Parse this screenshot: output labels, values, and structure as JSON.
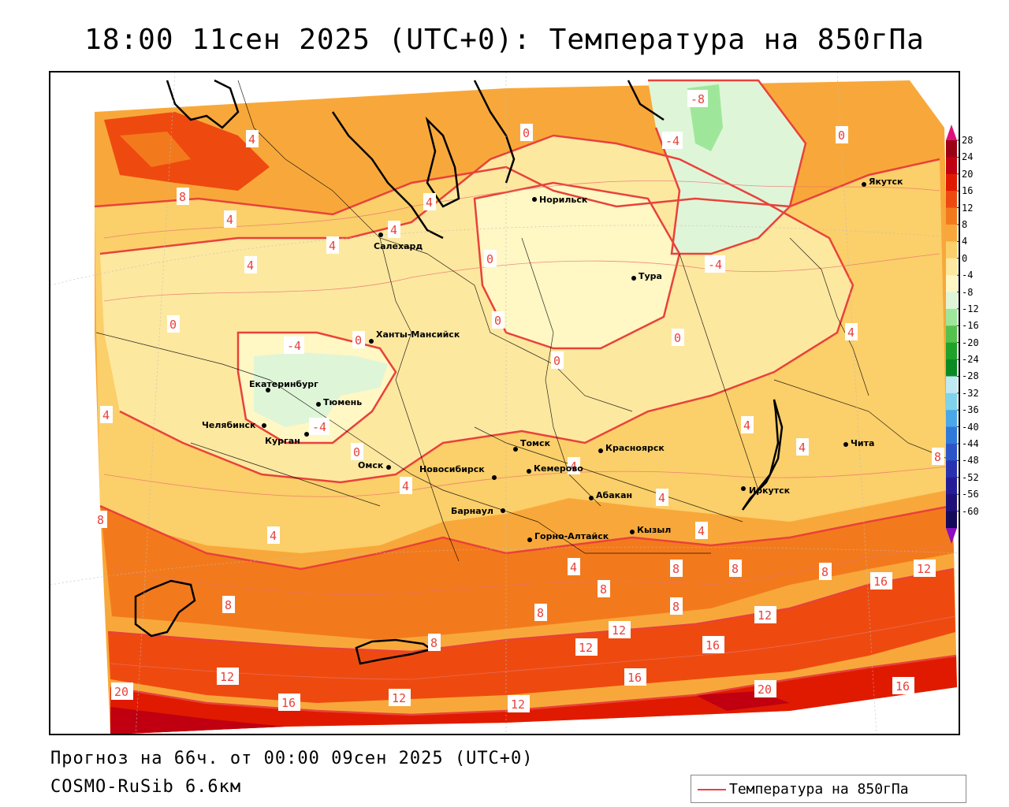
{
  "title": "18:00 11сен 2025 (UTC+0): Температура на 850гПа",
  "forecast_line": "Прогноз на 66ч. от 00:00 09сен 2025 (UTC+0)",
  "model_line": "COSMO-RuSib 6.6км",
  "legend_label": "Температура на 850гПа",
  "colorbar": {
    "labels": [
      "28",
      "24",
      "20",
      "16",
      "12",
      "8",
      "4",
      "0",
      "-4",
      "-8",
      "-12",
      "-16",
      "-20",
      "-24",
      "-28",
      "-32",
      "-36",
      "-40",
      "-44",
      "-48",
      "-52",
      "-56",
      "-60"
    ],
    "colors": [
      "#9a0014",
      "#c00010",
      "#e01a00",
      "#ee4a10",
      "#f37a1c",
      "#f8a83a",
      "#fbcf6a",
      "#fde8a0",
      "#fff7c4",
      "#dff5d8",
      "#9ee79a",
      "#56c24e",
      "#1fa22a",
      "#0a8a22",
      "#bfeaf3",
      "#7fd3ec",
      "#4aa7e8",
      "#2f79da",
      "#2a55c8",
      "#2832b0",
      "#241c96",
      "#1e1078",
      "#140a5a"
    ],
    "top_arrow_color": "#e0107a",
    "bottom_arrow_color": "#8a10c0"
  },
  "cities": [
    {
      "name": "Норильск"
    },
    {
      "name": "Якутск"
    },
    {
      "name": "Салехард"
    },
    {
      "name": "Тура"
    },
    {
      "name": "Ханты-Мансийск"
    },
    {
      "name": "Екатеринбург"
    },
    {
      "name": "Тюмень"
    },
    {
      "name": "Челябинск"
    },
    {
      "name": "Курган"
    },
    {
      "name": "Омск"
    },
    {
      "name": "Томск"
    },
    {
      "name": "Красноярск"
    },
    {
      "name": "Новосибирск"
    },
    {
      "name": "Кемерово"
    },
    {
      "name": "Абакан"
    },
    {
      "name": "Иркутск"
    },
    {
      "name": "Чита"
    },
    {
      "name": "Барнаул"
    },
    {
      "name": "Горно-Алтайск"
    },
    {
      "name": "Кызыл"
    }
  ],
  "contour_labels": [
    "-8",
    "-4",
    "0",
    "4",
    "8",
    "12",
    "16",
    "20"
  ]
}
